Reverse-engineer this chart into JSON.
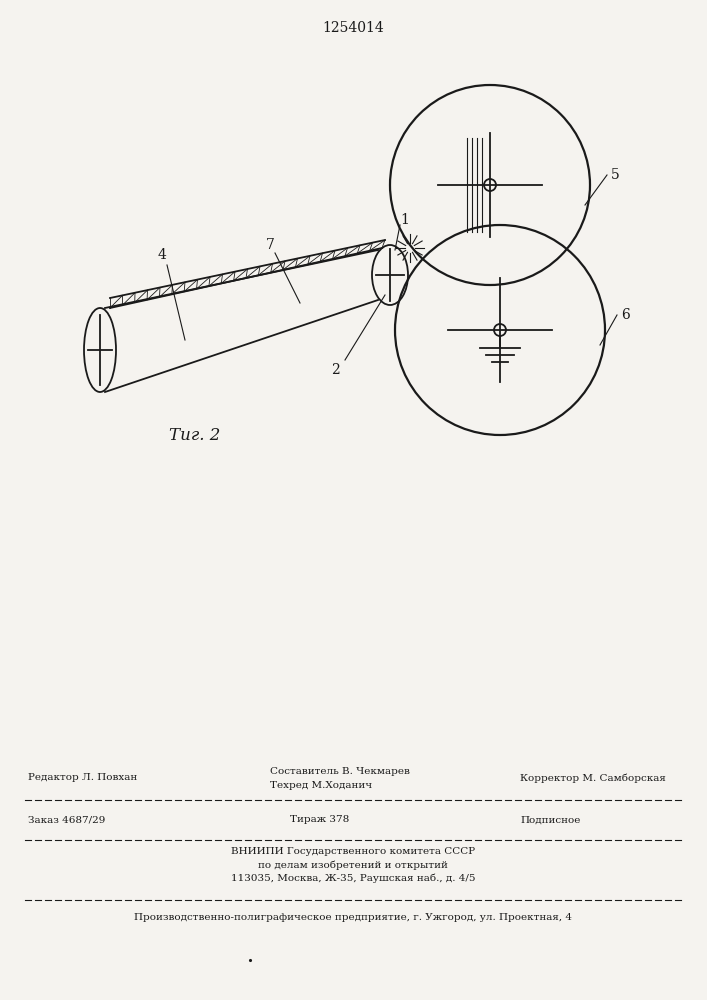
{
  "patent_number": "1254014",
  "fig_label": "Τиг. 2",
  "bg_color": "#f5f3ef",
  "line_color": "#1a1a1a",
  "footer": {
    "line1_left": "Редактор Л. Повхан",
    "line1_center": "Составитель В. Чекмарев",
    "line1a_center": "Техред М.Ходанич",
    "line1_right": "Корректор М. Самборская",
    "line2_left": "Заказ 4687/29",
    "line2_center": "Тираж 378",
    "line2_right": "Подписное",
    "line3": "ВНИИПИ Государственного комитета СССР",
    "line4": "по делам изобретений и открытий",
    "line5": "113035, Москва, Ж-35, Раушская наб., д. 4/5",
    "line6": "Производственно-полиграфическое предприятие, г. Ужгород, ул. Проектная, 4"
  }
}
